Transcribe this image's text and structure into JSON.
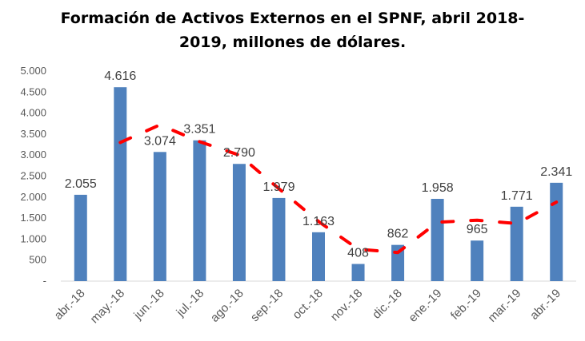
{
  "chart_data": {
    "type": "bar",
    "title_line1": "Formación de Activos Externos en el SPNF, abril 2018-",
    "title_line2": "2019, millones de dólares.",
    "categories": [
      "abr.-18",
      "may.-18",
      "jun.-18",
      "jul.-18",
      "ago.-18",
      "sep.-18",
      "oct.-18",
      "nov.-18",
      "dic.-18",
      "ene.-19",
      "feb.-19",
      "mar.-19",
      "abr.-19"
    ],
    "values": [
      2055,
      4616,
      3074,
      3351,
      2790,
      1979,
      1163,
      408,
      862,
      1958,
      965,
      1771,
      2341
    ],
    "value_labels": [
      "2.055",
      "4.616",
      "3.074",
      "3.351",
      "2.790",
      "1.979",
      "1.163",
      "408",
      "862",
      "1.958",
      "965",
      "1.771",
      "2.341"
    ],
    "trend_values": [
      null,
      3300,
      3720,
      3320,
      3000,
      2200,
      1420,
      760,
      680,
      1400,
      1450,
      1370,
      1880
    ],
    "yticks": [
      "-",
      "500",
      "1.000",
      "1.500",
      "2.000",
      "2.500",
      "3.000",
      "3.500",
      "4.000",
      "4.500",
      "5.000"
    ],
    "ylim": [
      0,
      5000
    ],
    "bar_color": "#4f81bd",
    "trend_color": "#ff0000",
    "grid": false
  }
}
